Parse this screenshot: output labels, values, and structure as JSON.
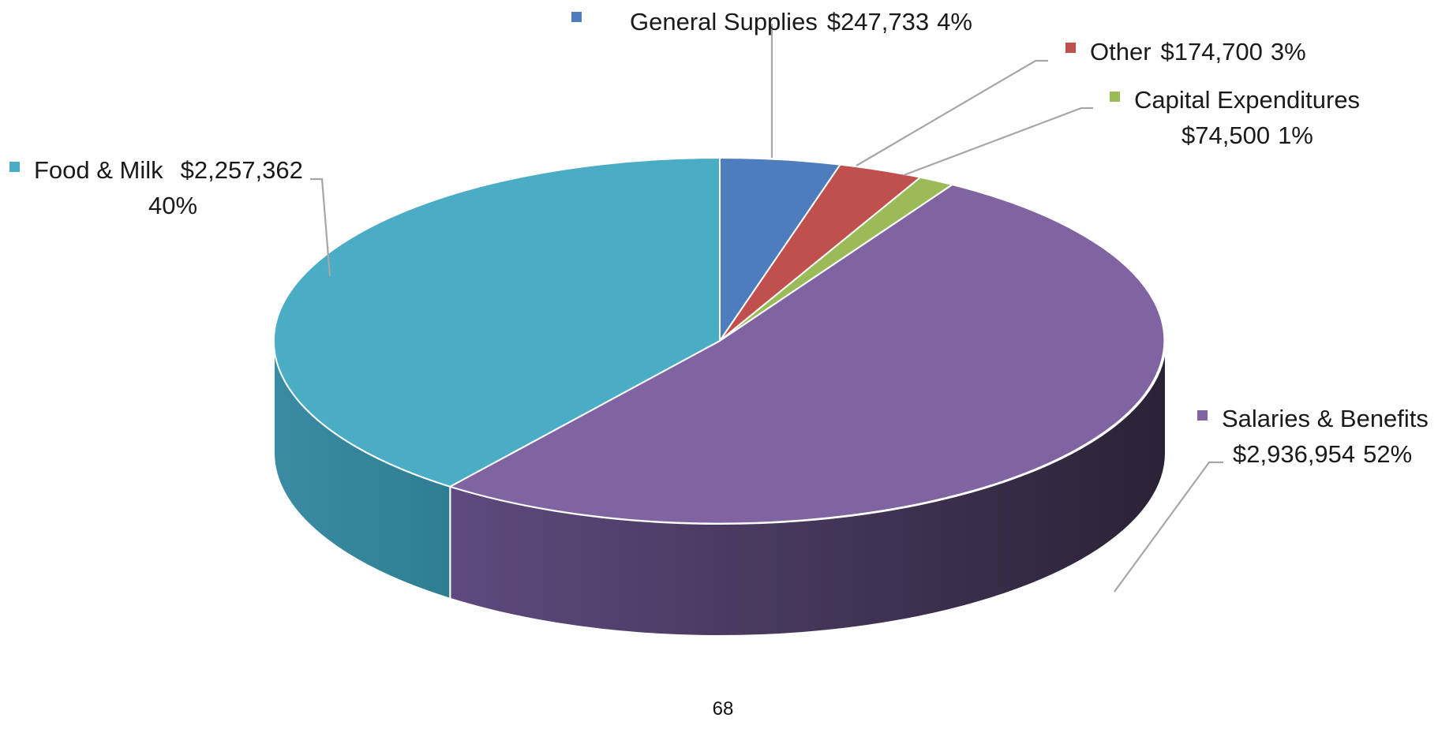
{
  "chart_data": {
    "type": "pie",
    "style": "3d",
    "slices": [
      {
        "label": "General Supplies",
        "value": 247733,
        "value_text": "$247,733",
        "percent_text": "4%",
        "color": "#4E7DBD"
      },
      {
        "label": "Other",
        "value": 174700,
        "value_text": "$174,700",
        "percent_text": "3%",
        "color": "#C0504D"
      },
      {
        "label": "Capital Expenditures",
        "value": 74500,
        "value_text": "$74,500",
        "percent_text": "1%",
        "color": "#9BBB59"
      },
      {
        "label": "Salaries & Benefits",
        "value": 2936954,
        "value_text": "$2,936,954",
        "percent_text": "52%",
        "color": "#8064A2"
      },
      {
        "label": "Food & Milk",
        "value": 2257362,
        "value_text": "$2,257,362",
        "percent_text": "40%",
        "color": "#4BACC6"
      }
    ],
    "start_angle": "12 o'clock",
    "direction": "clockwise"
  },
  "page_number": "68"
}
